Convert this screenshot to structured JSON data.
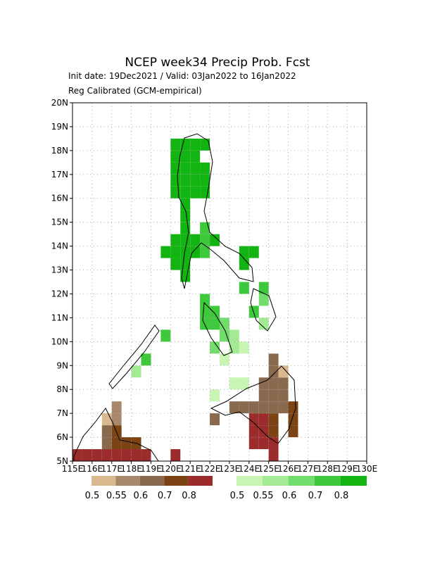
{
  "chart_data": {
    "type": "map",
    "title": "NCEP week34 Precip Prob. Fcst",
    "subtitle": "Init date: 19Dec2021 / Valid: 03Jan2022 to 16Jan2022",
    "note": "Reg Calibrated (GCM-empirical)",
    "xlim": [
      115,
      130
    ],
    "ylim": [
      5,
      20
    ],
    "xticks": [
      {
        "value": 115,
        "label": "115E"
      },
      {
        "value": 116,
        "label": "116E"
      },
      {
        "value": 117,
        "label": "117E"
      },
      {
        "value": 118,
        "label": "118E"
      },
      {
        "value": 119,
        "label": "119E"
      },
      {
        "value": 120,
        "label": "120E"
      },
      {
        "value": 121,
        "label": "121E"
      },
      {
        "value": 122,
        "label": "122E"
      },
      {
        "value": 123,
        "label": "123E"
      },
      {
        "value": 124,
        "label": "124E"
      },
      {
        "value": 125,
        "label": "125E"
      },
      {
        "value": 126,
        "label": "126E"
      },
      {
        "value": 127,
        "label": "127E"
      },
      {
        "value": 128,
        "label": "128E"
      },
      {
        "value": 129,
        "label": "129E"
      },
      {
        "value": 130,
        "label": "130E"
      }
    ],
    "yticks": [
      {
        "value": 5,
        "label": "5N"
      },
      {
        "value": 6,
        "label": "6N"
      },
      {
        "value": 7,
        "label": "7N"
      },
      {
        "value": 8,
        "label": "8N"
      },
      {
        "value": 9,
        "label": "9N"
      },
      {
        "value": 10,
        "label": "10N"
      },
      {
        "value": 11,
        "label": "11N"
      },
      {
        "value": 12,
        "label": "12N"
      },
      {
        "value": 13,
        "label": "13N"
      },
      {
        "value": 14,
        "label": "14N"
      },
      {
        "value": 15,
        "label": "15N"
      },
      {
        "value": 16,
        "label": "16N"
      },
      {
        "value": 17,
        "label": "17N"
      },
      {
        "value": 18,
        "label": "18N"
      },
      {
        "value": 19,
        "label": "19N"
      },
      {
        "value": 20,
        "label": "20N"
      }
    ],
    "grid": true,
    "cell_size": 0.5,
    "layers": [
      {
        "name": "below",
        "levels": [
          0.5,
          0.55,
          0.6,
          0.7,
          0.8
        ],
        "colors": [
          "#d8b88c",
          "#a8886a",
          "#8a6a4e",
          "#7c4414",
          "#9c2c2c"
        ],
        "cells": [
          [
            124.5,
            7,
            0.6
          ],
          [
            125,
            7,
            0.6
          ],
          [
            125.5,
            7,
            0.6
          ],
          [
            124.5,
            7.5,
            0.6
          ],
          [
            125,
            7.5,
            0.6
          ],
          [
            125.5,
            7.5,
            0.6
          ],
          [
            124.5,
            8,
            0.6
          ],
          [
            125,
            8,
            0.6
          ],
          [
            125.5,
            8,
            0.6
          ],
          [
            125,
            8.5,
            0.6
          ],
          [
            125,
            9,
            0.6
          ],
          [
            125.5,
            8.5,
            0.5
          ],
          [
            123,
            7,
            0.6
          ],
          [
            123.5,
            7,
            0.6
          ],
          [
            124,
            7,
            0.6
          ],
          [
            122,
            6.5,
            0.6
          ],
          [
            124,
            5.5,
            0.8
          ],
          [
            124,
            6,
            0.8
          ],
          [
            124,
            6.5,
            0.8
          ],
          [
            124.5,
            5.5,
            0.8
          ],
          [
            124.5,
            6,
            0.8
          ],
          [
            124.5,
            6.5,
            0.8
          ],
          [
            125,
            5,
            0.8
          ],
          [
            125,
            5.5,
            0.8
          ],
          [
            125,
            6,
            0.7
          ],
          [
            125,
            6.5,
            0.7
          ],
          [
            126,
            6,
            0.7
          ],
          [
            126,
            6.5,
            0.7
          ],
          [
            126,
            7,
            0.7
          ],
          [
            116.5,
            5.5,
            0.6
          ],
          [
            116.5,
            6,
            0.6
          ],
          [
            117,
            5.5,
            0.7
          ],
          [
            117,
            6,
            0.7
          ],
          [
            117,
            6.5,
            0.55
          ],
          [
            117,
            7,
            0.55
          ],
          [
            116.5,
            6.5,
            0.5
          ],
          [
            117.5,
            5.5,
            0.7
          ],
          [
            118,
            5.5,
            0.7
          ],
          [
            115,
            5,
            0.8
          ],
          [
            115.5,
            5,
            0.8
          ],
          [
            116,
            5,
            0.8
          ],
          [
            116.5,
            5,
            0.8
          ],
          [
            117,
            5,
            0.8
          ],
          [
            117.5,
            5,
            0.8
          ],
          [
            118,
            5,
            0.8
          ],
          [
            118.5,
            5,
            0.8
          ],
          [
            120,
            5,
            0.8
          ]
        ]
      },
      {
        "name": "above",
        "levels": [
          0.5,
          0.55,
          0.6,
          0.7,
          0.8
        ],
        "colors": [
          "#c8f4b4",
          "#a4ea94",
          "#72dc6c",
          "#3ec83c",
          "#12b412"
        ],
        "cells": [
          [
            120,
            16,
            0.8
          ],
          [
            120,
            16.5,
            0.8
          ],
          [
            120,
            17,
            0.8
          ],
          [
            120,
            17.5,
            0.8
          ],
          [
            120,
            18,
            0.8
          ],
          [
            120.5,
            16,
            0.8
          ],
          [
            120.5,
            16.5,
            0.8
          ],
          [
            120.5,
            17,
            0.8
          ],
          [
            120.5,
            17.5,
            0.8
          ],
          [
            120.5,
            18,
            0.8
          ],
          [
            121,
            16,
            0.8
          ],
          [
            121,
            16.5,
            0.8
          ],
          [
            121,
            17,
            0.8
          ],
          [
            121,
            17.5,
            0.8
          ],
          [
            121,
            18,
            0.8
          ],
          [
            121.5,
            16,
            0.8
          ],
          [
            121.5,
            16.5,
            0.8
          ],
          [
            121.5,
            17,
            0.8
          ],
          [
            121.5,
            18,
            0.8
          ],
          [
            120.5,
            12.5,
            0.8
          ],
          [
            120.5,
            13,
            0.8
          ],
          [
            120.5,
            13.5,
            0.8
          ],
          [
            120.5,
            14,
            0.8
          ],
          [
            120.5,
            14.5,
            0.8
          ],
          [
            120.5,
            15,
            0.8
          ],
          [
            120.5,
            15.5,
            0.8
          ],
          [
            120,
            13,
            0.8
          ],
          [
            120,
            13.5,
            0.8
          ],
          [
            120,
            14,
            0.8
          ],
          [
            119.5,
            13.5,
            0.8
          ],
          [
            121,
            13.5,
            0.8
          ],
          [
            121,
            14,
            0.8
          ],
          [
            121.5,
            14,
            0.7
          ],
          [
            121.5,
            14.5,
            0.7
          ],
          [
            121.5,
            13.5,
            0.7
          ],
          [
            122,
            14,
            0.8
          ],
          [
            123.5,
            13,
            0.8
          ],
          [
            123.5,
            13.5,
            0.8
          ],
          [
            124,
            13.5,
            0.8
          ],
          [
            123.5,
            12,
            0.7
          ],
          [
            124.5,
            12,
            0.7
          ],
          [
            124,
            11,
            0.7
          ],
          [
            124.5,
            11.5,
            0.6
          ],
          [
            124.5,
            10.5,
            0.55
          ],
          [
            121.5,
            10.5,
            0.7
          ],
          [
            121.5,
            11,
            0.7
          ],
          [
            121.5,
            11.5,
            0.7
          ],
          [
            122,
            10.5,
            0.7
          ],
          [
            122,
            11,
            0.7
          ],
          [
            122.5,
            10.5,
            0.6
          ],
          [
            122.5,
            10,
            0.6
          ],
          [
            123,
            10,
            0.55
          ],
          [
            123,
            9.5,
            0.55
          ],
          [
            122,
            9.5,
            0.6
          ],
          [
            122.5,
            9,
            0.5
          ],
          [
            123.5,
            9.5,
            0.5
          ],
          [
            118.5,
            9,
            0.7
          ],
          [
            118,
            8.5,
            0.55
          ],
          [
            119.5,
            10,
            0.7
          ],
          [
            123,
            8,
            0.5
          ],
          [
            123.5,
            8,
            0.5
          ],
          [
            122,
            7.5,
            0.5
          ]
        ]
      }
    ]
  }
}
